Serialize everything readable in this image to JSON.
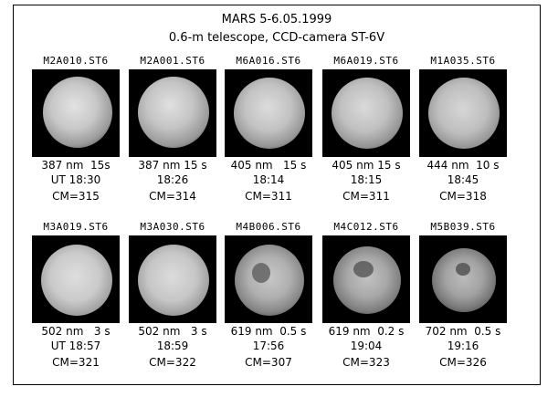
{
  "header": {
    "title": "MARS  5-6.05.1999",
    "subtitle": "0.6-m telescope, CCD-camera ST-6V"
  },
  "frames": [
    {
      "file": "M2A010.ST6",
      "filter": "387 nm  15s",
      "time": "UT 18:30",
      "cm": "CM=315"
    },
    {
      "file": "M2A001.ST6",
      "filter": "387 nm 15 s",
      "time": "18:26",
      "cm": "CM=314"
    },
    {
      "file": "M6A016.ST6",
      "filter": "405 nm   15 s",
      "time": "18:14",
      "cm": "CM=311"
    },
    {
      "file": "M6A019.ST6",
      "filter": "405 nm 15 s",
      "time": "18:15",
      "cm": "CM=311"
    },
    {
      "file": "M1A035.ST6",
      "filter": "444 nm  10 s",
      "time": "18:45",
      "cm": "CM=318"
    },
    {
      "file": "M3A019.ST6",
      "filter": "502 nm   3 s",
      "time": "UT 18:57",
      "cm": "CM=321"
    },
    {
      "file": "M3A030.ST6",
      "filter": "502 nm   3 s",
      "time": "18:59",
      "cm": "CM=322"
    },
    {
      "file": "M4B006.ST6",
      "filter": "619 nm  0.5 s",
      "time": "17:56",
      "cm": "CM=307"
    },
    {
      "file": "M4C012.ST6",
      "filter": "619 nm  0.2 s",
      "time": "19:04",
      "cm": "CM=323"
    },
    {
      "file": "M5B039.ST6",
      "filter": "702 nm  0.5 s",
      "time": "19:16",
      "cm": "CM=326"
    }
  ]
}
